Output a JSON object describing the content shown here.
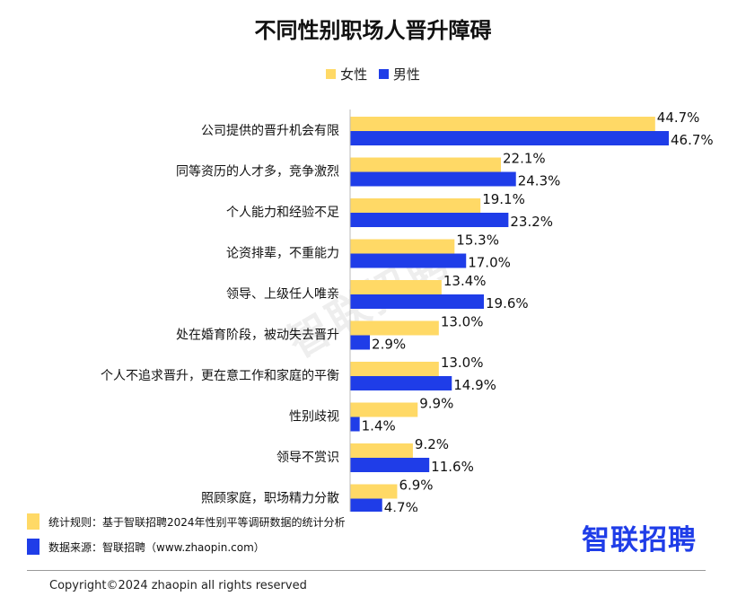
{
  "colors": {
    "female": "#ffd966",
    "male": "#1f3de8"
  },
  "watermark": "智联招聘",
  "footer": {
    "rule_label": "统计规则：基于智联招聘2024年性别平等调研数据的统计分析",
    "source_label": "数据来源：智联招聘（www.zhaopin.com）",
    "logo_text": "智联招聘",
    "copyright": "Copyright©2024 zhaopin all rights reserved"
  },
  "chart_data": {
    "type": "bar",
    "orientation": "horizontal",
    "title": "不同性别职场人晋升障碍",
    "legend_position": "top",
    "xlim": [
      0,
      50
    ],
    "grid": false,
    "categories": [
      "公司提供的晋升机会有限",
      "同等资历的人才多，竞争激烈",
      "个人能力和经验不足",
      "论资排辈，不重能力",
      "领导、上级任人唯亲",
      "处在婚育阶段，被动失去晋升",
      "个人不追求晋升，更在意工作和家庭的平衡",
      "性别歧视",
      "领导不赏识",
      "照顾家庭，职场精力分散"
    ],
    "series": [
      {
        "name": "女性",
        "values": [
          44.7,
          22.1,
          19.1,
          15.3,
          13.4,
          13.0,
          13.0,
          9.9,
          9.2,
          6.9
        ]
      },
      {
        "name": "男性",
        "values": [
          46.7,
          24.3,
          23.2,
          17.0,
          19.6,
          2.9,
          14.9,
          1.4,
          11.6,
          4.7
        ]
      }
    ]
  }
}
